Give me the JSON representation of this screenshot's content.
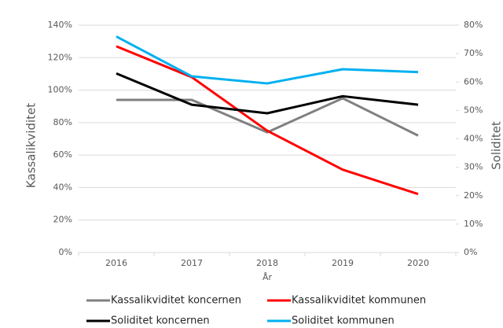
{
  "chart_data": {
    "type": "line",
    "x_label": "År",
    "y_label": "Kassalikviditet",
    "y2_label": "Soliditet",
    "categories": [
      "2016",
      "2017",
      "2018",
      "2019",
      "2020"
    ],
    "series": [
      {
        "name": "Kassalikviditet koncernen",
        "color": "#808080",
        "values": [
          94,
          94,
          74,
          95,
          72
        ]
      },
      {
        "name": "Kassalikviditet kommunen",
        "color": "#ff0000",
        "values": [
          127,
          108,
          75,
          51,
          36
        ]
      },
      {
        "name": "Soliditet koncernen",
        "color": "#000000",
        "axis": "y2",
        "values": [
          63,
          52,
          49,
          55,
          52
        ]
      },
      {
        "name": "Soliditet kommunen",
        "color": "#00b0f0",
        "axis": "y2",
        "values": [
          76,
          62,
          59.5,
          64.5,
          63.5
        ]
      }
    ],
    "ylim": [
      0,
      140
    ],
    "yticks": [
      {
        "value": 0,
        "label": "0%"
      },
      {
        "value": 20,
        "label": "20%"
      },
      {
        "value": 40,
        "label": "40%"
      },
      {
        "value": 60,
        "label": "60%"
      },
      {
        "value": 80,
        "label": "80%"
      },
      {
        "value": 100,
        "label": "100%"
      },
      {
        "value": 120,
        "label": "120%"
      },
      {
        "value": 140,
        "label": "140%"
      }
    ],
    "y2lim": [
      0,
      80
    ],
    "y2ticks": [
      {
        "value": 0,
        "label": "0%"
      },
      {
        "value": 10,
        "label": "10%"
      },
      {
        "value": 20,
        "label": "20%"
      },
      {
        "value": 30,
        "label": "30%"
      },
      {
        "value": 40,
        "label": "40%"
      },
      {
        "value": 50,
        "label": "50%"
      },
      {
        "value": 60,
        "label": "60%"
      },
      {
        "value": 70,
        "label": "70%"
      },
      {
        "value": 80,
        "label": "80%"
      }
    ],
    "grid": true,
    "legend": "bottom"
  }
}
